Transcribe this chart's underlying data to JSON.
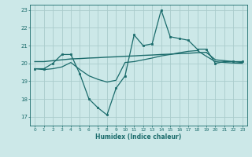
{
  "xlabel": "Humidex (Indice chaleur)",
  "background_color": "#cce8e8",
  "grid_color": "#aacccc",
  "line_color": "#1a6b6b",
  "xlim": [
    -0.5,
    23.5
  ],
  "ylim": [
    16.5,
    23.3
  ],
  "yticks": [
    17,
    18,
    19,
    20,
    21,
    22,
    23
  ],
  "xticks": [
    0,
    1,
    2,
    3,
    4,
    5,
    6,
    7,
    8,
    9,
    10,
    11,
    12,
    13,
    14,
    15,
    16,
    17,
    18,
    19,
    20,
    21,
    22,
    23
  ],
  "series1_x": [
    0,
    1,
    2,
    3,
    4,
    5,
    6,
    7,
    8,
    9,
    10,
    11,
    12,
    13,
    14,
    15,
    16,
    17,
    18,
    19,
    20,
    21,
    22,
    23
  ],
  "series1_y": [
    19.7,
    19.7,
    20.0,
    20.5,
    20.5,
    19.4,
    18.0,
    17.5,
    17.1,
    18.6,
    19.3,
    21.6,
    21.0,
    21.1,
    23.0,
    21.5,
    21.4,
    21.3,
    20.8,
    20.8,
    20.0,
    20.1,
    20.1,
    20.1
  ],
  "series2_x": [
    0,
    1,
    2,
    3,
    4,
    5,
    6,
    7,
    8,
    9,
    10,
    11,
    12,
    13,
    14,
    15,
    16,
    17,
    18,
    19,
    20,
    21,
    22,
    23
  ],
  "series2_y": [
    20.1,
    20.1,
    20.15,
    20.2,
    20.25,
    20.27,
    20.3,
    20.32,
    20.35,
    20.37,
    20.4,
    20.42,
    20.45,
    20.47,
    20.5,
    20.52,
    20.55,
    20.57,
    20.6,
    20.62,
    20.2,
    20.15,
    20.1,
    20.05
  ],
  "series3_x": [
    0,
    1,
    2,
    3,
    4,
    5,
    6,
    7,
    8,
    9,
    10,
    11,
    12,
    13,
    14,
    15,
    16,
    17,
    18,
    19,
    20,
    21,
    22,
    23
  ],
  "series3_y": [
    19.7,
    19.65,
    19.7,
    19.8,
    20.05,
    19.65,
    19.3,
    19.1,
    18.95,
    19.05,
    20.05,
    20.1,
    20.2,
    20.3,
    20.42,
    20.5,
    20.6,
    20.68,
    20.72,
    20.4,
    20.1,
    20.05,
    20.02,
    20.0
  ]
}
